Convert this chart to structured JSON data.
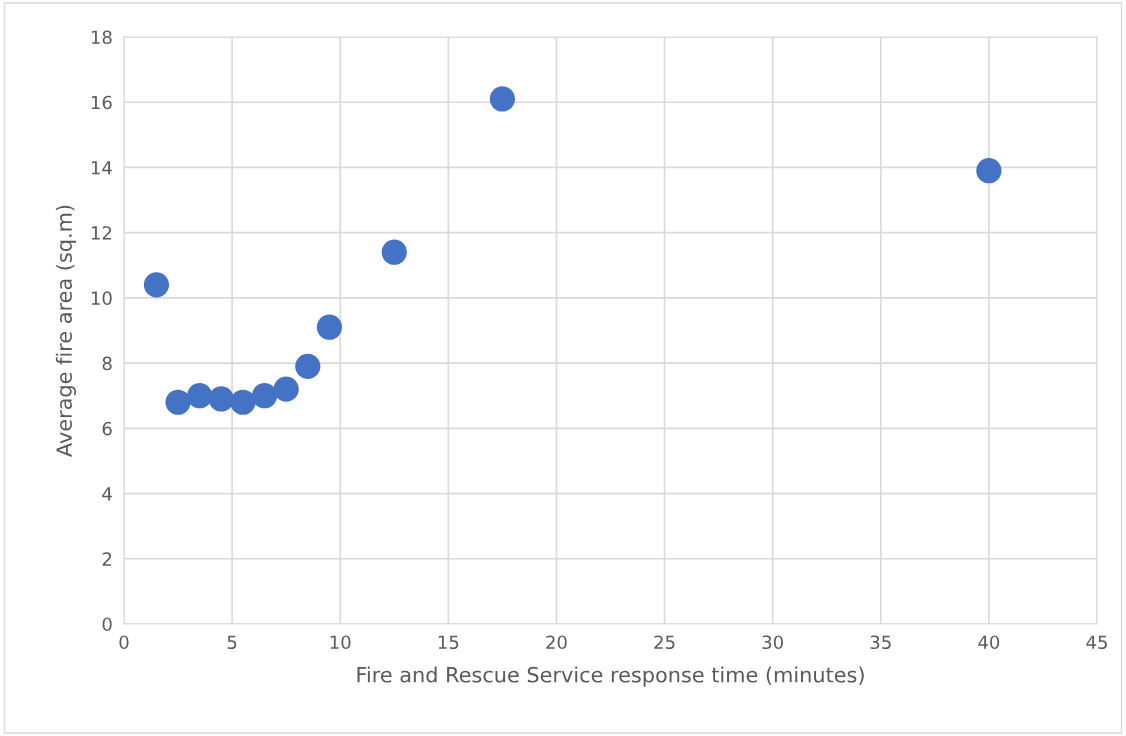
{
  "chart_data": {
    "type": "scatter",
    "xlabel": "Fire and Rescue Service response time (minutes)",
    "ylabel": "Average fire area (sq.m)",
    "x": [
      1.5,
      2.5,
      3.5,
      4.5,
      5.5,
      6.5,
      7.5,
      8.5,
      9.5,
      12.5,
      17.5,
      40
    ],
    "values": [
      10.4,
      6.8,
      7.0,
      6.9,
      6.8,
      7.0,
      7.2,
      7.9,
      9.1,
      11.4,
      16.1,
      13.9
    ],
    "color": "#4472c4",
    "marker": "circle",
    "xlim": [
      0,
      45
    ],
    "xticks": [
      0,
      5,
      10,
      15,
      20,
      25,
      30,
      35,
      40,
      45
    ],
    "ylim": [
      0,
      18
    ],
    "yticks": [
      0,
      2,
      4,
      6,
      8,
      10,
      12,
      14,
      16,
      18
    ],
    "grid": true
  }
}
